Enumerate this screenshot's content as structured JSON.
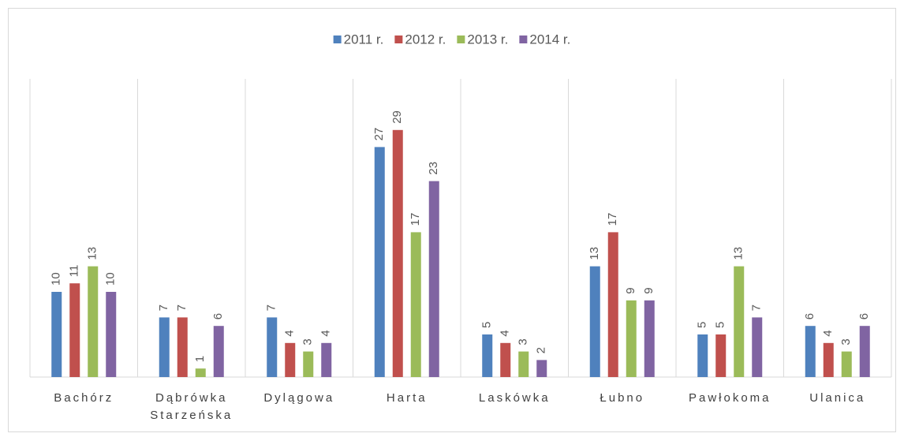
{
  "chart_data": {
    "type": "bar",
    "categories": [
      "Bachórz",
      "Dąbrówka Starzeńska",
      "Dylągowa",
      "Harta",
      "Laskówka",
      "Łubno",
      "Pawłokoma",
      "Ulanica"
    ],
    "series": [
      {
        "name": "2011 r.",
        "color": "#4f81bd",
        "values": [
          10,
          7,
          7,
          27,
          5,
          13,
          5,
          6
        ]
      },
      {
        "name": "2012 r.",
        "color": "#c0504d",
        "values": [
          11,
          7,
          4,
          29,
          4,
          17,
          5,
          4
        ]
      },
      {
        "name": "2013 r.",
        "color": "#9bbb59",
        "values": [
          13,
          1,
          3,
          17,
          3,
          9,
          13,
          3
        ]
      },
      {
        "name": "2014 r.",
        "color": "#8064a2",
        "values": [
          10,
          6,
          4,
          23,
          2,
          9,
          7,
          6
        ]
      }
    ],
    "ylim": [
      0,
      35
    ],
    "legend": "top"
  }
}
